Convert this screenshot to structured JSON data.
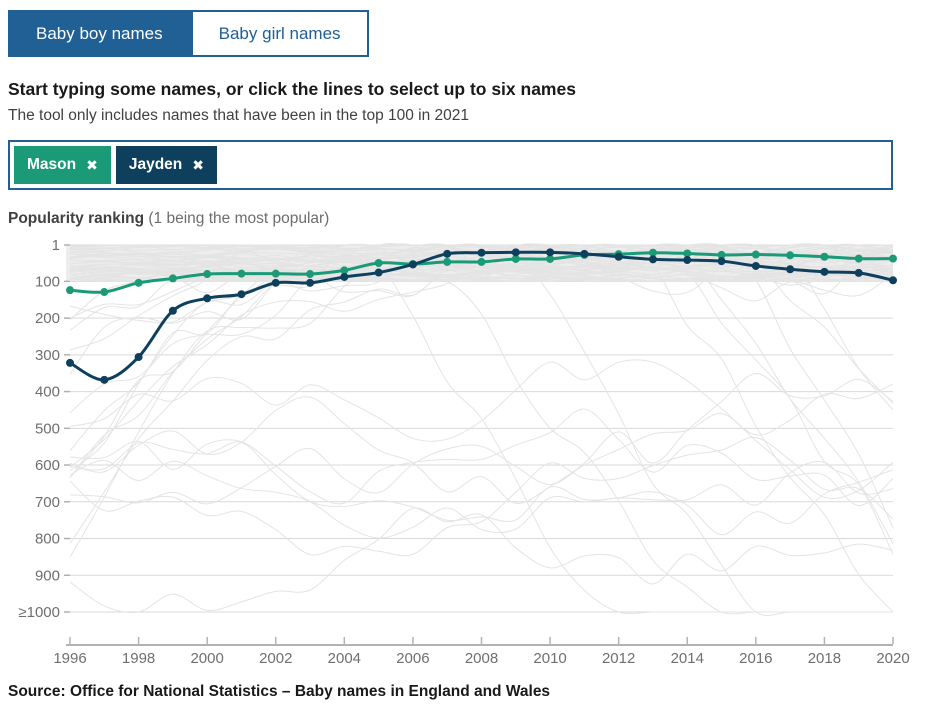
{
  "colors": {
    "accent": "#206095",
    "mason": "#1a9a77",
    "jayden": "#0e405e",
    "band": "#ededed",
    "bg_line": "#e4e4e4",
    "grid": "#d9d9d9",
    "grid_stub": "#b0b0b0",
    "axis": "#b3b3b3",
    "axis_label": "#6f6f6f"
  },
  "tabs": [
    {
      "label": "Baby boy names",
      "active": true
    },
    {
      "label": "Baby girl names",
      "active": false
    }
  ],
  "heading": "Start typing some names, or click the lines to select up to six names",
  "subheading": "The tool only includes names that have been in the top 100 in 2021",
  "selected_names": [
    {
      "label": "Mason",
      "color_key": "mason"
    },
    {
      "label": "Jayden",
      "color_key": "jayden"
    }
  ],
  "remove_icon": "✖",
  "chart_label_bold": "Popularity ranking",
  "chart_label_rest": " (1 being the most popular)",
  "source": "Source: Office for National Statistics – Baby names in England and Wales",
  "chart_data": {
    "type": "line",
    "title": "Popularity ranking (1 being the most popular)",
    "x": [
      1996,
      1997,
      1998,
      1999,
      2000,
      2001,
      2002,
      2003,
      2004,
      2005,
      2006,
      2007,
      2008,
      2009,
      2010,
      2011,
      2012,
      2013,
      2014,
      2015,
      2016,
      2017,
      2018,
      2019,
      2020
    ],
    "x_tick_years": [
      1996,
      1998,
      2000,
      2002,
      2004,
      2006,
      2008,
      2010,
      2012,
      2014,
      2016,
      2018,
      2020
    ],
    "y_axis": {
      "ticks": [
        1,
        100,
        200,
        300,
        400,
        500,
        600,
        700,
        800,
        900,
        1000
      ],
      "tick_labels": [
        "1",
        "100",
        "200",
        "300",
        "400",
        "500",
        "600",
        "700",
        "800",
        "900",
        "≥1000"
      ],
      "inverted": true,
      "range": [
        1,
        1000
      ],
      "note": "rank, 1 = most popular"
    },
    "legend_position": "none",
    "grid": true,
    "series": [
      {
        "name": "Mason",
        "color": "#1a9a77",
        "values": [
          124,
          129,
          104,
          92,
          80,
          79,
          79,
          80,
          70,
          50,
          53,
          47,
          47,
          39,
          39,
          28,
          26,
          22,
          24,
          28,
          27,
          29,
          33,
          38,
          38
        ]
      },
      {
        "name": "Jayden",
        "color": "#0e405e",
        "values": [
          322,
          368,
          306,
          180,
          146,
          135,
          104,
          104,
          88,
          76,
          54,
          25,
          22,
          21,
          21,
          25,
          33,
          40,
          42,
          45,
          58,
          67,
          74,
          77,
          97
        ]
      }
    ]
  }
}
